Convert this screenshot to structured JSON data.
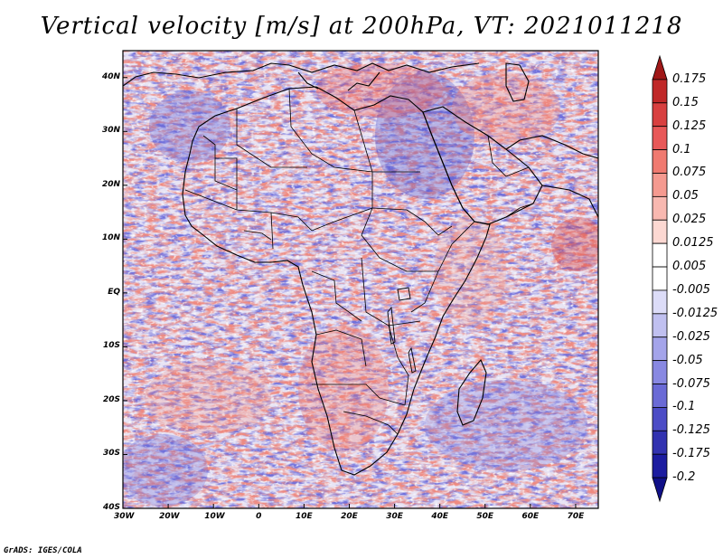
{
  "title": "Vertical velocity [m/s] at 200hPa, VT: 2021011218",
  "credit": "GrADS: IGES/COLA",
  "map": {
    "lon_range": [
      -30,
      75
    ],
    "lat_range": [
      -40,
      45
    ],
    "lon_ticks": [
      "30W",
      "20W",
      "10W",
      "0",
      "10E",
      "20E",
      "30E",
      "40E",
      "50E",
      "60E",
      "70E"
    ],
    "lat_ticks": [
      "40S",
      "30S",
      "20S",
      "10S",
      "EQ",
      "10N",
      "20N",
      "30N",
      "40N"
    ]
  },
  "colorbar": {
    "labels": [
      "0.175",
      "0.15",
      "0.125",
      "0.1",
      "0.075",
      "0.05",
      "0.025",
      "0.0125",
      "0.005",
      "-0.005",
      "-0.0125",
      "-0.025",
      "-0.05",
      "-0.075",
      "-0.1",
      "-0.125",
      "-0.175",
      "-0.2"
    ],
    "colors": [
      "#a01818",
      "#c02828",
      "#d84040",
      "#e85858",
      "#f07a70",
      "#f59a90",
      "#f8b8b0",
      "#fcd8d2",
      "#ffffff",
      "#ffffff",
      "#dcdcf8",
      "#c0c0f0",
      "#a4a4ea",
      "#8888e2",
      "#6a6ad6",
      "#4c4cc6",
      "#3232b0",
      "#1c1ca0",
      "#101088"
    ]
  }
}
